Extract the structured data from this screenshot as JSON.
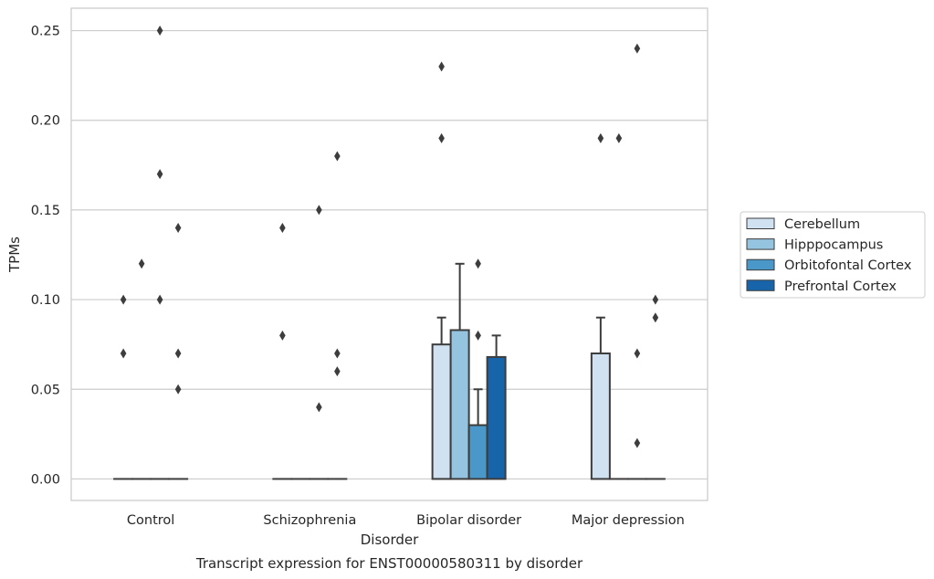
{
  "chart_data": {
    "type": "bar",
    "title": "Transcript expression for ENST00000580311 by disorder",
    "xlabel": "Disorder",
    "ylabel": "TPMs",
    "ylim": [
      -0.012,
      0.2625
    ],
    "yticks": [
      "0.00",
      "0.05",
      "0.10",
      "0.15",
      "0.20",
      "0.25"
    ],
    "grid": true,
    "legend_position": "right",
    "categories": [
      "Control",
      "Schizophrenia",
      "Bipolar disorder",
      "Major depression"
    ],
    "series": [
      {
        "name": "Cerebellum",
        "color": "#d0e1f2",
        "values": [
          0,
          0,
          0.075,
          0.07
        ],
        "err_upper": [
          0,
          0,
          0.09,
          0.09
        ]
      },
      {
        "name": "Hipppocampus",
        "color": "#94c4df",
        "values": [
          0,
          0,
          0.083,
          0
        ],
        "err_upper": [
          0,
          0,
          0.12,
          0
        ]
      },
      {
        "name": "Orbitofontal Cortex",
        "color": "#4a98c9",
        "values": [
          0,
          0,
          0.03,
          0
        ],
        "err_upper": [
          0,
          0,
          0.05,
          0
        ]
      },
      {
        "name": "Prefrontal Cortex",
        "color": "#1764ab",
        "values": [
          0,
          0,
          0.068,
          0
        ],
        "err_upper": [
          0,
          0,
          0.08,
          0
        ]
      }
    ],
    "outliers": [
      {
        "category": 0,
        "series": 0,
        "values": [
          0.1,
          0.07
        ]
      },
      {
        "category": 0,
        "series": 1,
        "values": [
          0.12
        ]
      },
      {
        "category": 0,
        "series": 2,
        "values": [
          0.25,
          0.17,
          0.1
        ]
      },
      {
        "category": 0,
        "series": 3,
        "values": [
          0.14,
          0.07,
          0.05
        ]
      },
      {
        "category": 1,
        "series": 0,
        "values": [
          0.14,
          0.08
        ]
      },
      {
        "category": 1,
        "series": 2,
        "values": [
          0.15,
          0.04
        ]
      },
      {
        "category": 1,
        "series": 3,
        "values": [
          0.18,
          0.07,
          0.06
        ]
      },
      {
        "category": 2,
        "series": 0,
        "values": [
          0.23,
          0.19
        ]
      },
      {
        "category": 2,
        "series": 2,
        "values": [
          0.12,
          0.08
        ]
      },
      {
        "category": 3,
        "series": 0,
        "values": [
          0.19
        ]
      },
      {
        "category": 3,
        "series": 1,
        "values": [
          0.19
        ]
      },
      {
        "category": 3,
        "series": 2,
        "values": [
          0.24,
          0.07,
          0.02
        ]
      },
      {
        "category": 3,
        "series": 3,
        "values": [
          0.1,
          0.09
        ]
      }
    ]
  }
}
